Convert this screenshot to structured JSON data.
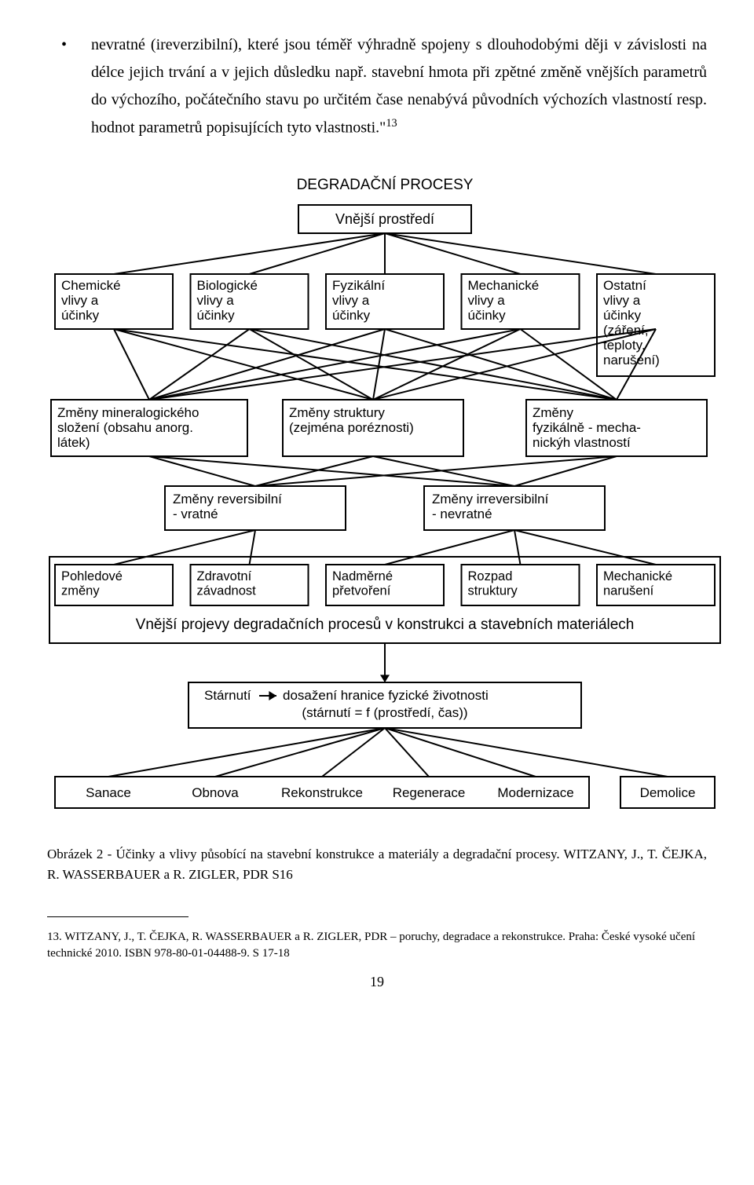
{
  "paragraph": {
    "bullet": "•",
    "text_a": "nevratné (ireverzibilní), které jsou téměř výhradně spojeny s dlouhodobými ději v závislosti na délce jejich trvání a v jejich důsledku např. stavební hmota při zpětné změně vnějších parametrů do výchozího, počátečního stavu po určitém čase nenabývá původních výchozích vlastností resp. hodnot parametrů popisujících tyto vlastnosti.\"",
    "sup": "13"
  },
  "diagram": {
    "title": "DEGRADAČNÍ PROCESY",
    "root": "Vnější prostředí",
    "row1": [
      "Chemické\nvlivy a\núčinky",
      "Biologické\nvlivy a\núčinky",
      "Fyzikální\nvlivy a\núčinky",
      "Mechanické\nvlivy a\núčinky",
      "Ostatní\nvlivy a\núčinky\n(záření,\nteploty,\nnarušení)"
    ],
    "row2": [
      "Změny mineralogického\nsložení (obsahu anorg.\nlátek)",
      "Změny struktury\n(zejména poréznosti)",
      "Změny\nfyzikálně - mecha-\nnickýh vlastností"
    ],
    "row3": [
      "Změny reversibilní\n- vratné",
      "Změny irreversibilní\n- nevratné"
    ],
    "row4": [
      "Pohledové\nzměny",
      "Zdravotní\nzávadnost",
      "Nadměrné\npřetvoření",
      "Rozpad\nstruktury",
      "Mechanické\nnarušení"
    ],
    "band_label": "Vnější projevy degradačních procesů v konstrukci a stavebních materiálech",
    "aging_box_a": "Stárnutí",
    "aging_box_b": "dosažení hranice fyzické životnosti",
    "aging_box_c": "(stárnutí = f (prostředí, čas))",
    "row5": [
      "Sanace",
      "Obnova",
      "Rekonstrukce",
      "Regenerace",
      "Modernizace",
      "Demolice"
    ],
    "style": {
      "stroke": "#000000",
      "stroke_width": 2,
      "font_family": "Arial, Helvetica, sans-serif",
      "title_fontsize": 19,
      "node_fontsize": 18,
      "band_fontsize": 19,
      "bg": "#ffffff"
    }
  },
  "caption": "Obrázek 2 - Účinky a vlivy působící na stavební konstrukce a materiály a degradační procesy. WITZANY, J., T. ČEJKA, R. WASSERBAUER a R. ZIGLER, PDR S16",
  "footnote": {
    "num": "13",
    "text": ". WITZANY, J., T. ČEJKA, R. WASSERBAUER a R. ZIGLER, PDR – poruchy, degradace a rekonstrukce. Praha: České vysoké učení technické 2010. ISBN 978-80-01-04488-9. S 17-18"
  },
  "page_number": "19"
}
